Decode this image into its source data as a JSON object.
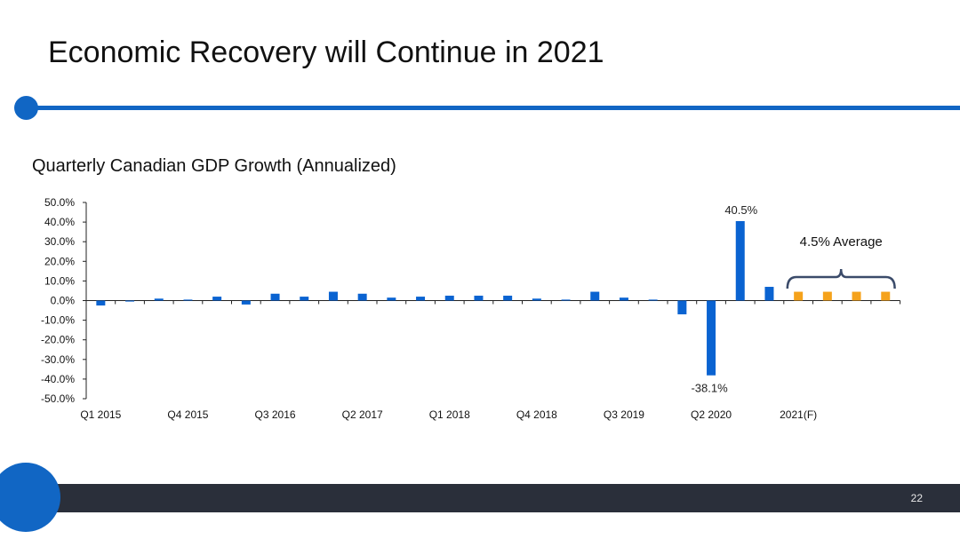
{
  "slide": {
    "title": "Economic Recovery will Continue in 2021",
    "page_number": "22"
  },
  "colors": {
    "accent": "#1166c4",
    "bar_actual": "#0a63d1",
    "bar_forecast": "#f5a21b",
    "footer": "#2a2f3a"
  },
  "chart_data": {
    "type": "bar",
    "title": "Quarterly Canadian GDP Growth (Annualized)",
    "xlabel": "",
    "ylabel": "",
    "ylim": [
      -50,
      50
    ],
    "yticks": [
      "50.0%",
      "40.0%",
      "30.0%",
      "20.0%",
      "10.0%",
      "0.0%",
      "-10.0%",
      "-20.0%",
      "-30.0%",
      "-40.0%",
      "-50.0%"
    ],
    "grid": false,
    "x_tick_labels": [
      "Q1 2015",
      "Q4 2015",
      "Q3 2016",
      "Q2 2017",
      "Q1 2018",
      "Q4 2018",
      "Q3 2019",
      "Q2 2020",
      "2021(F)"
    ],
    "series": [
      {
        "kind": "actual",
        "values": [
          -2.5,
          -0.5,
          1.0,
          0.5,
          2.0,
          -2.0,
          3.5,
          2.0,
          4.5,
          3.5,
          1.5,
          2.0,
          2.5,
          2.5,
          2.5,
          1.0,
          0.5,
          4.5,
          1.5,
          0.5,
          -7.0,
          -38.1,
          40.5,
          7.0
        ]
      },
      {
        "kind": "forecast",
        "values": [
          4.5,
          4.5,
          4.5,
          4.5
        ]
      }
    ],
    "data_labels": {
      "q2_2020": "-38.1%",
      "q3_2020": "40.5%"
    },
    "annotation": "4.5% Average"
  }
}
